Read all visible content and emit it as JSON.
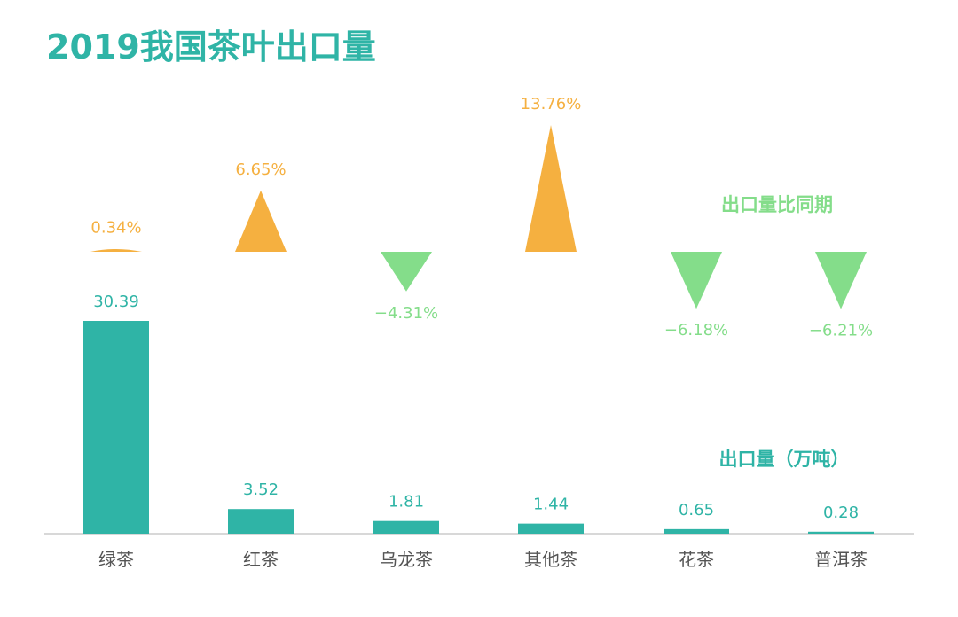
{
  "chart_data": {
    "type": "bar",
    "title": "2019我国茶叶出口量",
    "categories": [
      "绿茶",
      "红茶",
      "乌龙茶",
      "其他茶",
      "花茶",
      "普洱茶"
    ],
    "series": [
      {
        "name": "出口量（万吨）",
        "type": "bar",
        "values": [
          30.39,
          3.52,
          1.81,
          1.44,
          0.65,
          0.28
        ],
        "labels": [
          "30.39",
          "3.52",
          "1.81",
          "1.44",
          "0.65",
          "0.28"
        ]
      },
      {
        "name": "出口量比同期",
        "type": "triangle",
        "values": [
          0.34,
          6.65,
          -4.31,
          13.76,
          -6.18,
          -6.21
        ],
        "labels": [
          "0.34%",
          "6.65%",
          "−4.31%",
          "13.76%",
          "−6.18%",
          "−6.21%"
        ]
      }
    ],
    "legend": [
      {
        "text": "出口量比同期"
      },
      {
        "text": "出口量（万吨）"
      }
    ],
    "colors": {
      "title": "#2fb4a6",
      "bar": "#2fb4a6",
      "positive": "#f5b040",
      "negative": "#84dd8a",
      "axis": "#cccccc",
      "category_text": "#555555"
    },
    "grid": false
  }
}
